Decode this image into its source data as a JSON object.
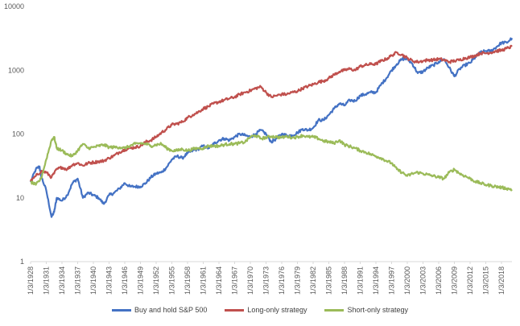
{
  "chart_data": {
    "type": "line",
    "title": "",
    "xlabel": "",
    "ylabel": "",
    "y_scale": "log",
    "ylim": [
      1,
      10000
    ],
    "y_ticks": [
      "1",
      "10",
      "100",
      "1000",
      "10000"
    ],
    "x_range": [
      "1/3/1928",
      "1/3/2020"
    ],
    "x_tick_labels": [
      "1/3/1928",
      "1/3/1931",
      "1/3/1934",
      "1/3/1937",
      "1/3/1940",
      "1/3/1943",
      "1/3/1946",
      "1/3/1949",
      "1/3/1952",
      "1/3/1955",
      "1/3/1958",
      "1/3/1961",
      "1/3/1964",
      "1/3/1967",
      "1/3/1970",
      "1/3/1973",
      "1/3/1976",
      "1/3/1979",
      "1/3/1982",
      "1/3/1985",
      "1/3/1988",
      "1/3/1991",
      "1/3/1994",
      "1/3/1997",
      "1/3/2000",
      "1/3/2003",
      "1/3/2006",
      "1/3/2009",
      "1/3/2012",
      "1/3/2015",
      "1/3/2018"
    ],
    "grid": false,
    "legend_position": "bottom",
    "series": [
      {
        "name": "Buy and hold S&P 500",
        "color": "#4472c4",
        "points": [
          [
            1928,
            17.7
          ],
          [
            1929,
            28
          ],
          [
            1929.7,
            31
          ],
          [
            1930,
            22
          ],
          [
            1931,
            13
          ],
          [
            1932,
            5
          ],
          [
            1932.5,
            6
          ],
          [
            1933,
            10
          ],
          [
            1934,
            9
          ],
          [
            1935,
            11
          ],
          [
            1936,
            17
          ],
          [
            1937,
            20
          ],
          [
            1938,
            10
          ],
          [
            1939,
            12
          ],
          [
            1940,
            11
          ],
          [
            1941,
            10
          ],
          [
            1942,
            8
          ],
          [
            1943,
            11
          ],
          [
            1944,
            12
          ],
          [
            1945,
            14
          ],
          [
            1946,
            17
          ],
          [
            1947,
            15
          ],
          [
            1948,
            15
          ],
          [
            1949,
            15
          ],
          [
            1950,
            17
          ],
          [
            1951,
            21
          ],
          [
            1952,
            24
          ],
          [
            1953,
            25
          ],
          [
            1954,
            30
          ],
          [
            1955,
            40
          ],
          [
            1956,
            45
          ],
          [
            1957,
            42
          ],
          [
            1958,
            50
          ],
          [
            1959,
            55
          ],
          [
            1960,
            58
          ],
          [
            1961,
            65
          ],
          [
            1962,
            60
          ],
          [
            1963,
            70
          ],
          [
            1964,
            80
          ],
          [
            1965,
            85
          ],
          [
            1966,
            80
          ],
          [
            1967,
            90
          ],
          [
            1968,
            100
          ],
          [
            1969,
            95
          ],
          [
            1970,
            90
          ],
          [
            1971,
            100
          ],
          [
            1972,
            115
          ],
          [
            1973,
            100
          ],
          [
            1974,
            75
          ],
          [
            1975,
            85
          ],
          [
            1976,
            100
          ],
          [
            1977,
            95
          ],
          [
            1978,
            95
          ],
          [
            1979,
            105
          ],
          [
            1980,
            120
          ],
          [
            1981,
            115
          ],
          [
            1982,
            125
          ],
          [
            1983,
            165
          ],
          [
            1984,
            165
          ],
          [
            1985,
            200
          ],
          [
            1986,
            250
          ],
          [
            1987,
            300
          ],
          [
            1988,
            280
          ],
          [
            1989,
            340
          ],
          [
            1990,
            330
          ],
          [
            1991,
            400
          ],
          [
            1992,
            420
          ],
          [
            1993,
            450
          ],
          [
            1994,
            450
          ],
          [
            1995,
            600
          ],
          [
            1996,
            750
          ],
          [
            1997,
            1000
          ],
          [
            1998,
            1250
          ],
          [
            1999,
            1500
          ],
          [
            2000,
            1500
          ],
          [
            2001,
            1250
          ],
          [
            2002,
            900
          ],
          [
            2003,
            950
          ],
          [
            2004,
            1100
          ],
          [
            2005,
            1200
          ],
          [
            2006,
            1350
          ],
          [
            2007,
            1500
          ],
          [
            2008,
            1100
          ],
          [
            2009,
            800
          ],
          [
            2010,
            1050
          ],
          [
            2011,
            1200
          ],
          [
            2012,
            1300
          ],
          [
            2013,
            1600
          ],
          [
            2014,
            1900
          ],
          [
            2015,
            2000
          ],
          [
            2016,
            2000
          ],
          [
            2017,
            2300
          ],
          [
            2018,
            2700
          ],
          [
            2019,
            2700
          ],
          [
            2020,
            3200
          ]
        ]
      },
      {
        "name": "Long-only strategy",
        "color": "#c0504d",
        "points": [
          [
            1928,
            18
          ],
          [
            1929,
            22
          ],
          [
            1930,
            26
          ],
          [
            1931,
            25
          ],
          [
            1932,
            21
          ],
          [
            1933,
            28
          ],
          [
            1934,
            30
          ],
          [
            1935,
            28
          ],
          [
            1936,
            33
          ],
          [
            1937,
            35
          ],
          [
            1938,
            32
          ],
          [
            1939,
            35
          ],
          [
            1940,
            36
          ],
          [
            1941,
            37
          ],
          [
            1942,
            38
          ],
          [
            1943,
            42
          ],
          [
            1944,
            46
          ],
          [
            1945,
            52
          ],
          [
            1946,
            57
          ],
          [
            1947,
            60
          ],
          [
            1948,
            62
          ],
          [
            1949,
            65
          ],
          [
            1950,
            75
          ],
          [
            1951,
            80
          ],
          [
            1952,
            90
          ],
          [
            1953,
            105
          ],
          [
            1954,
            120
          ],
          [
            1955,
            140
          ],
          [
            1956,
            145
          ],
          [
            1957,
            155
          ],
          [
            1958,
            180
          ],
          [
            1959,
            200
          ],
          [
            1960,
            220
          ],
          [
            1961,
            250
          ],
          [
            1962,
            270
          ],
          [
            1963,
            300
          ],
          [
            1964,
            320
          ],
          [
            1965,
            340
          ],
          [
            1966,
            360
          ],
          [
            1967,
            380
          ],
          [
            1968,
            420
          ],
          [
            1969,
            450
          ],
          [
            1970,
            480
          ],
          [
            1971,
            520
          ],
          [
            1972,
            550
          ],
          [
            1973,
            450
          ],
          [
            1974,
            380
          ],
          [
            1975,
            400
          ],
          [
            1976,
            420
          ],
          [
            1977,
            420
          ],
          [
            1978,
            450
          ],
          [
            1979,
            470
          ],
          [
            1980,
            520
          ],
          [
            1981,
            560
          ],
          [
            1982,
            600
          ],
          [
            1983,
            650
          ],
          [
            1984,
            680
          ],
          [
            1985,
            750
          ],
          [
            1986,
            850
          ],
          [
            1987,
            950
          ],
          [
            1988,
            1000
          ],
          [
            1989,
            1050
          ],
          [
            1990,
            1000
          ],
          [
            1991,
            1150
          ],
          [
            1992,
            1200
          ],
          [
            1993,
            1250
          ],
          [
            1994,
            1250
          ],
          [
            1995,
            1400
          ],
          [
            1996,
            1500
          ],
          [
            1997,
            1700
          ],
          [
            1998,
            1900
          ],
          [
            1999,
            1750
          ],
          [
            2000,
            1550
          ],
          [
            2001,
            1400
          ],
          [
            2002,
            1350
          ],
          [
            2003,
            1400
          ],
          [
            2004,
            1450
          ],
          [
            2005,
            1450
          ],
          [
            2006,
            1500
          ],
          [
            2007,
            1450
          ],
          [
            2008,
            1350
          ],
          [
            2009,
            1400
          ],
          [
            2010,
            1450
          ],
          [
            2011,
            1550
          ],
          [
            2012,
            1600
          ],
          [
            2013,
            1700
          ],
          [
            2014,
            1850
          ],
          [
            2015,
            1850
          ],
          [
            2016,
            1900
          ],
          [
            2017,
            2000
          ],
          [
            2018,
            2050
          ],
          [
            2019,
            2200
          ],
          [
            2020,
            2350
          ]
        ]
      },
      {
        "name": "Short-only strategy",
        "color": "#9bbb59",
        "points": [
          [
            1928,
            17.7
          ],
          [
            1929,
            16
          ],
          [
            1930,
            20
          ],
          [
            1931,
            40
          ],
          [
            1932,
            80
          ],
          [
            1932.5,
            90
          ],
          [
            1933,
            60
          ],
          [
            1934,
            55
          ],
          [
            1935,
            48
          ],
          [
            1936,
            45
          ],
          [
            1937,
            55
          ],
          [
            1938,
            70
          ],
          [
            1939,
            60
          ],
          [
            1940,
            62
          ],
          [
            1941,
            65
          ],
          [
            1942,
            68
          ],
          [
            1943,
            62
          ],
          [
            1944,
            62
          ],
          [
            1945,
            62
          ],
          [
            1946,
            60
          ],
          [
            1947,
            65
          ],
          [
            1948,
            70
          ],
          [
            1949,
            72
          ],
          [
            1950,
            70
          ],
          [
            1951,
            65
          ],
          [
            1952,
            68
          ],
          [
            1953,
            70
          ],
          [
            1954,
            60
          ],
          [
            1955,
            55
          ],
          [
            1956,
            55
          ],
          [
            1957,
            58
          ],
          [
            1958,
            55
          ],
          [
            1959,
            58
          ],
          [
            1960,
            60
          ],
          [
            1961,
            60
          ],
          [
            1962,
            65
          ],
          [
            1963,
            65
          ],
          [
            1964,
            65
          ],
          [
            1965,
            68
          ],
          [
            1966,
            70
          ],
          [
            1967,
            70
          ],
          [
            1968,
            72
          ],
          [
            1969,
            75
          ],
          [
            1970,
            90
          ],
          [
            1971,
            95
          ],
          [
            1972,
            85
          ],
          [
            1973,
            88
          ],
          [
            1974,
            92
          ],
          [
            1975,
            90
          ],
          [
            1976,
            88
          ],
          [
            1977,
            92
          ],
          [
            1978,
            88
          ],
          [
            1979,
            90
          ],
          [
            1980,
            95
          ],
          [
            1981,
            90
          ],
          [
            1982,
            90
          ],
          [
            1983,
            85
          ],
          [
            1984,
            78
          ],
          [
            1985,
            75
          ],
          [
            1986,
            72
          ],
          [
            1987,
            80
          ],
          [
            1988,
            68
          ],
          [
            1989,
            64
          ],
          [
            1990,
            60
          ],
          [
            1991,
            55
          ],
          [
            1992,
            52
          ],
          [
            1993,
            48
          ],
          [
            1994,
            45
          ],
          [
            1995,
            42
          ],
          [
            1996,
            38
          ],
          [
            1997,
            35
          ],
          [
            1998,
            28
          ],
          [
            1999,
            25
          ],
          [
            2000,
            22
          ],
          [
            2001,
            24
          ],
          [
            2002,
            25
          ],
          [
            2003,
            24
          ],
          [
            2004,
            23
          ],
          [
            2005,
            22
          ],
          [
            2006,
            21
          ],
          [
            2007,
            20
          ],
          [
            2008,
            25
          ],
          [
            2009,
            28
          ],
          [
            2010,
            24
          ],
          [
            2011,
            22
          ],
          [
            2012,
            20
          ],
          [
            2013,
            18
          ],
          [
            2014,
            17
          ],
          [
            2015,
            16
          ],
          [
            2016,
            15.5
          ],
          [
            2017,
            15
          ],
          [
            2018,
            14.5
          ],
          [
            2019,
            14
          ],
          [
            2020,
            13.5
          ]
        ]
      }
    ]
  }
}
